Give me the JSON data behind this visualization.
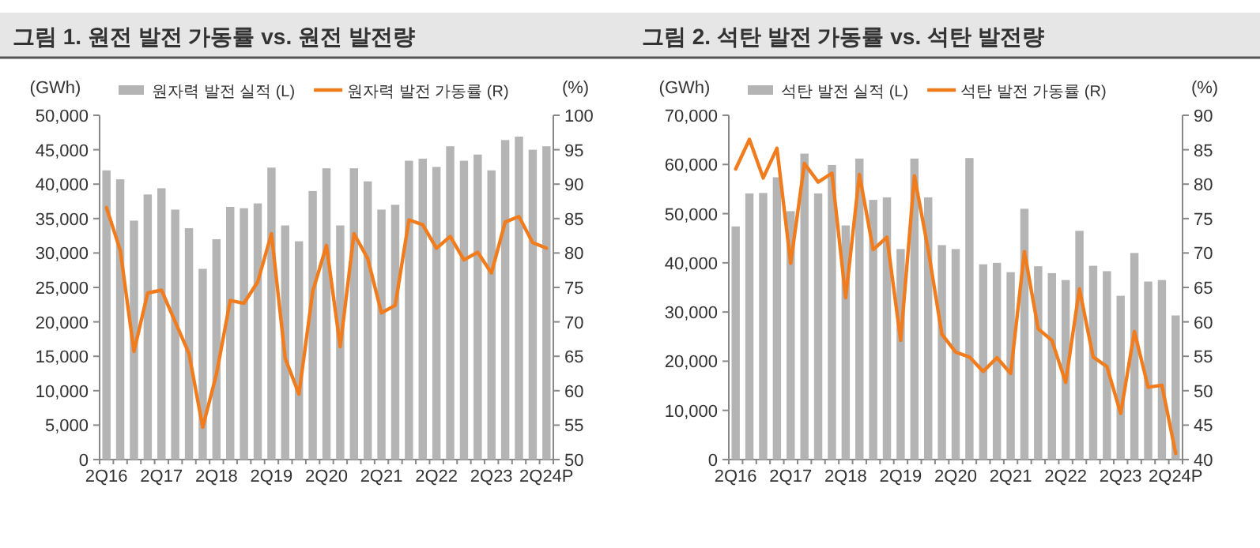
{
  "chart_data": [
    {
      "type": "bar",
      "title": "그림 1. 원전 발전 가동률 vs. 원전 발전량",
      "ylabel": "(GWh)",
      "y2label": "(%)",
      "legend": "top",
      "categories": [
        "2Q16",
        null,
        null,
        null,
        "2Q17",
        null,
        null,
        null,
        "2Q18",
        null,
        null,
        null,
        "2Q19",
        null,
        null,
        null,
        "2Q20",
        null,
        null,
        null,
        "2Q21",
        null,
        null,
        null,
        "2Q22",
        null,
        null,
        null,
        "2Q23",
        null,
        null,
        null,
        "2Q24P"
      ],
      "ylim": [
        0,
        50000
      ],
      "yticks": [
        0,
        {
          "value": 5000,
          "label": "5,000"
        },
        {
          "value": 10000,
          "label": "10,000"
        },
        {
          "value": 15000,
          "label": "15,000"
        },
        {
          "value": 20000,
          "label": "20,000"
        },
        {
          "value": 25000,
          "label": "25,000"
        },
        {
          "value": 30000,
          "label": "30,000"
        },
        {
          "value": 35000,
          "label": "35,000"
        },
        {
          "value": 40000,
          "label": "40,000"
        },
        {
          "value": 45000,
          "label": "45,000"
        },
        {
          "value": 50000,
          "label": "50,000"
        }
      ],
      "y2lim": [
        50,
        100
      ],
      "y2ticks": [
        50,
        55,
        60,
        65,
        70,
        75,
        80,
        85,
        90,
        95,
        100
      ],
      "series": [
        {
          "name": "원자력 발전 실적 (L)",
          "type": "bar",
          "color": "#b4b4b4",
          "values": [
            42000,
            40700,
            34700,
            38500,
            39400,
            36300,
            33600,
            27700,
            32000,
            36700,
            36500,
            37200,
            42400,
            34000,
            31700,
            39000,
            42300,
            34000,
            42300,
            40400,
            36300,
            37000,
            43400,
            43700,
            42500,
            45500,
            43400,
            44300,
            42000,
            46400,
            46900,
            45000,
            45500
          ]
        },
        {
          "name": "원자력 발전 가동률 (R)",
          "type": "line",
          "axis": "y2",
          "color": "#f07c1e",
          "values": [
            86.6,
            80.4,
            65.7,
            74.2,
            74.6,
            70.0,
            65.4,
            54.7,
            62.4,
            73.1,
            72.7,
            75.8,
            82.8,
            64.7,
            59.5,
            74.4,
            81.1,
            66.4,
            82.8,
            79.2,
            71.3,
            72.4,
            84.8,
            84.1,
            80.7,
            82.4,
            79.0,
            80.1,
            77.1,
            84.5,
            85.3,
            81.5,
            80.7
          ]
        }
      ]
    },
    {
      "type": "bar",
      "title": "그림 2. 석탄 발전 가동률 vs. 석탄 발전량",
      "ylabel": "(GWh)",
      "y2label": "(%)",
      "legend": "top",
      "categories": [
        "2Q16",
        null,
        null,
        null,
        "2Q17",
        null,
        null,
        null,
        "2Q18",
        null,
        null,
        null,
        "2Q19",
        null,
        null,
        null,
        "2Q20",
        null,
        null,
        null,
        "2Q21",
        null,
        null,
        null,
        "2Q22",
        null,
        null,
        null,
        "2Q23",
        null,
        null,
        null,
        "2Q24P"
      ],
      "ylim": [
        0,
        70000
      ],
      "yticks": [
        0,
        {
          "value": 10000,
          "label": "10,000"
        },
        {
          "value": 20000,
          "label": "20,000"
        },
        {
          "value": 30000,
          "label": "30,000"
        },
        {
          "value": 40000,
          "label": "40,000"
        },
        {
          "value": 50000,
          "label": "50,000"
        },
        {
          "value": 60000,
          "label": "60,000"
        },
        {
          "value": 70000,
          "label": "70,000"
        }
      ],
      "y2lim": [
        40,
        90
      ],
      "y2ticks": [
        40,
        45,
        50,
        55,
        60,
        65,
        70,
        75,
        80,
        85,
        90
      ],
      "series": [
        {
          "name": "석탄 발전 실적 (L)",
          "type": "bar",
          "color": "#b4b4b4",
          "values": [
            47400,
            54100,
            54200,
            57400,
            50500,
            62200,
            54100,
            59900,
            47600,
            61200,
            52800,
            53300,
            42800,
            61200,
            53300,
            43600,
            42800,
            61300,
            39700,
            40000,
            38100,
            51000,
            39300,
            37900,
            36500,
            46500,
            39400,
            38300,
            33300,
            42000,
            36200,
            36500,
            29300
          ]
        },
        {
          "name": "석탄 발전 가동률 (R)",
          "type": "line",
          "axis": "y2",
          "color": "#f07c1e",
          "values": [
            82.2,
            86.5,
            80.9,
            85.2,
            68.5,
            83.0,
            80.3,
            81.6,
            63.5,
            81.4,
            70.5,
            72.3,
            57.3,
            81.2,
            70.5,
            58.2,
            55.6,
            54.9,
            52.8,
            54.8,
            52.5,
            70.2,
            59.0,
            57.3,
            51.2,
            64.8,
            54.9,
            53.5,
            46.7,
            58.6,
            50.5,
            50.8,
            40.9
          ]
        }
      ]
    }
  ]
}
